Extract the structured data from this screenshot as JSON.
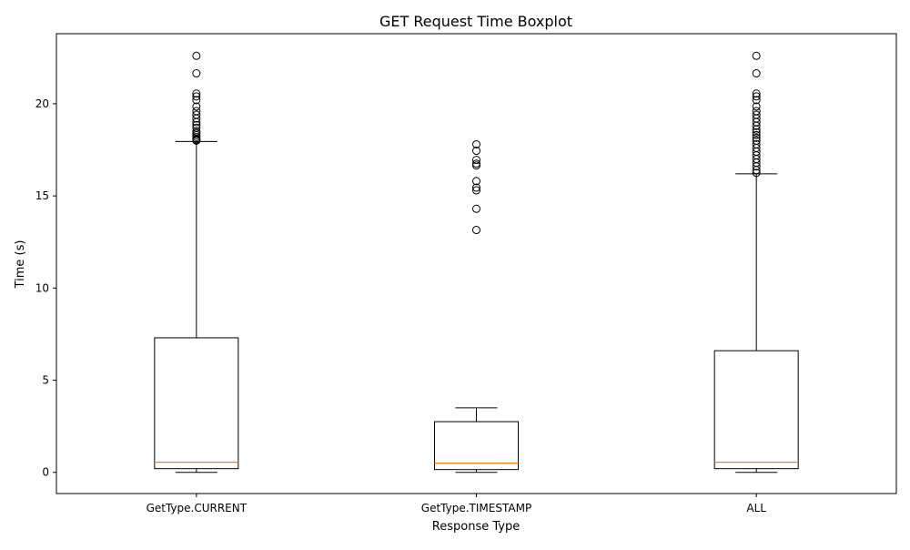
{
  "chart_data": {
    "type": "boxplot",
    "title": "GET Request Time Boxplot",
    "xlabel": "Response Type",
    "ylabel": "Time (s)",
    "ylim": [
      -1.15,
      23.8
    ],
    "yticks": [
      0,
      5,
      10,
      15,
      20
    ],
    "grid": false,
    "categories": [
      "GetType.CURRENT",
      "GetType.TIMESTAMP",
      "ALL"
    ],
    "boxes": [
      {
        "label": "GetType.CURRENT",
        "whisker_low": 0.0,
        "q1": 0.2,
        "median": 0.55,
        "q3": 7.3,
        "whisker_high": 17.95,
        "fliers": [
          18.0,
          18.05,
          18.1,
          18.2,
          18.3,
          18.4,
          18.5,
          18.7,
          18.85,
          19.0,
          19.2,
          19.4,
          19.6,
          19.85,
          20.2,
          20.4,
          20.55,
          21.65,
          22.6
        ]
      },
      {
        "label": "GetType.TIMESTAMP",
        "whisker_low": 0.0,
        "q1": 0.15,
        "median": 0.5,
        "q3": 2.75,
        "whisker_high": 3.5,
        "fliers": [
          13.15,
          14.3,
          15.3,
          15.45,
          15.8,
          16.65,
          16.75,
          16.95,
          17.45,
          17.8
        ]
      },
      {
        "label": "ALL",
        "whisker_low": 0.0,
        "q1": 0.2,
        "median": 0.55,
        "q3": 6.6,
        "whisker_high": 16.2,
        "fliers": [
          16.25,
          16.4,
          16.6,
          16.8,
          17.0,
          17.2,
          17.4,
          17.6,
          17.8,
          18.0,
          18.15,
          18.3,
          18.45,
          18.6,
          18.8,
          19.0,
          19.2,
          19.4,
          19.6,
          19.85,
          20.2,
          20.4,
          20.55,
          21.65,
          22.6
        ]
      }
    ],
    "colors": {
      "box": "#000000",
      "median": "#ff7f0e",
      "flier": "#000000",
      "background": "#ffffff"
    }
  }
}
